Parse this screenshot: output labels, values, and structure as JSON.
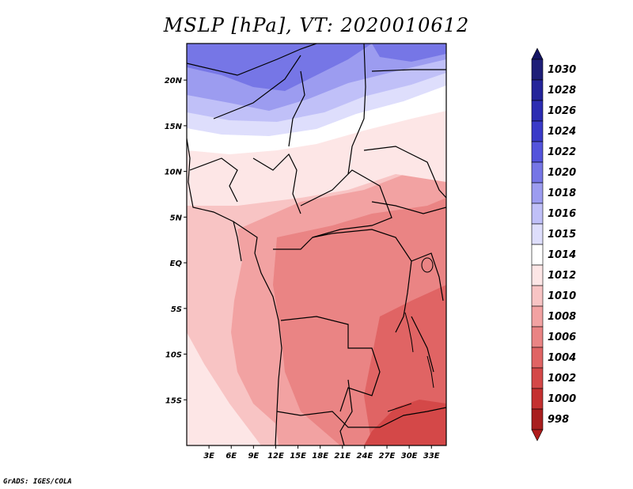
{
  "title": "MSLP [hPa], VT: 2020010612",
  "credit": "GrADS: IGES/COLA",
  "map": {
    "region": "Central and Southern Africa",
    "lon_range": [
      0,
      35
    ],
    "lat_range": [
      -20,
      24
    ],
    "lon_ticks": [
      {
        "lon": 3,
        "label": "3E"
      },
      {
        "lon": 6,
        "label": "6E"
      },
      {
        "lon": 9,
        "label": "9E"
      },
      {
        "lon": 12,
        "label": "12E"
      },
      {
        "lon": 15,
        "label": "15E"
      },
      {
        "lon": 18,
        "label": "18E"
      },
      {
        "lon": 21,
        "label": "21E"
      },
      {
        "lon": 24,
        "label": "24E"
      },
      {
        "lon": 27,
        "label": "27E"
      },
      {
        "lon": 30,
        "label": "30E"
      },
      {
        "lon": 33,
        "label": "33E"
      }
    ],
    "lat_ticks": [
      {
        "lat": 20,
        "label": "20N"
      },
      {
        "lat": 15,
        "label": "15N"
      },
      {
        "lat": 10,
        "label": "10N"
      },
      {
        "lat": 5,
        "label": "5N"
      },
      {
        "lat": 0,
        "label": "EQ"
      },
      {
        "lat": -5,
        "label": "5S"
      },
      {
        "lat": -10,
        "label": "10S"
      },
      {
        "lat": -15,
        "label": "15S"
      }
    ]
  },
  "colorbar": {
    "levels": [
      {
        "label": "1030",
        "color": "#1e1e78"
      },
      {
        "label": "1028",
        "color": "#24249a"
      },
      {
        "label": "1026",
        "color": "#2c2cb2"
      },
      {
        "label": "1024",
        "color": "#3a3ac8"
      },
      {
        "label": "1022",
        "color": "#5454dc"
      },
      {
        "label": "1020",
        "color": "#7676e6"
      },
      {
        "label": "1018",
        "color": "#9c9cf0"
      },
      {
        "label": "1016",
        "color": "#c0c0f8"
      },
      {
        "label": "1015",
        "color": "#dedefc"
      },
      {
        "label": "1014",
        "color": "#ffffff"
      },
      {
        "label": "1012",
        "color": "#fde6e6"
      },
      {
        "label": "1010",
        "color": "#f8c4c4"
      },
      {
        "label": "1008",
        "color": "#f2a2a2"
      },
      {
        "label": "1006",
        "color": "#ea8484"
      },
      {
        "label": "1004",
        "color": "#e06464"
      },
      {
        "label": "1002",
        "color": "#d44848"
      },
      {
        "label": "1000",
        "color": "#c43030"
      },
      {
        "label": "998",
        "color": "#a81e1e"
      }
    ],
    "top_color": "#141464",
    "bottom_color": "#b01c1c"
  }
}
